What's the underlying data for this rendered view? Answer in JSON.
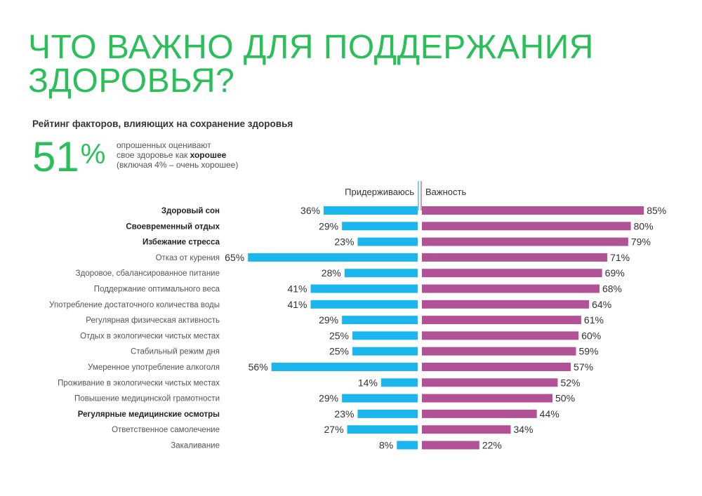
{
  "header": {
    "title": "ЧТО ВАЖНО ДЛЯ ПОДДЕРЖАНИЯ ЗДОРОВЬЯ?",
    "subtitle": "Рейтинг факторов, влияющих на сохранение здоровья"
  },
  "stat": {
    "value": "51",
    "unit": "%",
    "note_line1": "опрошенных оценивают",
    "note_line2_prefix": "свое здоровье как ",
    "note_line2_bold": "хорошее",
    "note_line3": "(включая 4% – очень хорошее)"
  },
  "chart_data": {
    "type": "bar",
    "orientation": "horizontal-diverging",
    "series": [
      {
        "name": "Придерживаюсь",
        "color": "#1cb6ee",
        "direction": "left",
        "values": [
          36,
          29,
          23,
          65,
          28,
          41,
          41,
          29,
          25,
          25,
          56,
          14,
          29,
          23,
          27,
          8
        ]
      },
      {
        "name": "Важность",
        "color": "#b15296",
        "direction": "right",
        "values": [
          85,
          80,
          79,
          71,
          69,
          68,
          64,
          61,
          60,
          59,
          57,
          52,
          50,
          44,
          34,
          22
        ]
      }
    ],
    "categories": [
      "Здоровый сон",
      "Своевременный отдых",
      "Избежание стресса",
      "Отказ от курения",
      "Здоровое, сбалансированное питание",
      "Поддержание оптимального веса",
      "Употребление достаточного количества воды",
      "Регулярная физическая активность",
      "Отдых в экологически чистых местах",
      "Стабильный режим дня",
      "Умеренное употребление алкоголя",
      "Проживание в экологически чистых местах",
      "Повышение медицинской грамотности",
      "Регулярные медицинские осмотры",
      "Ответственное самолечение",
      "Закаливание"
    ],
    "bold_categories": [
      0,
      1,
      2,
      13
    ],
    "value_suffix": "%",
    "xlim": [
      0,
      100
    ],
    "grid": false
  }
}
